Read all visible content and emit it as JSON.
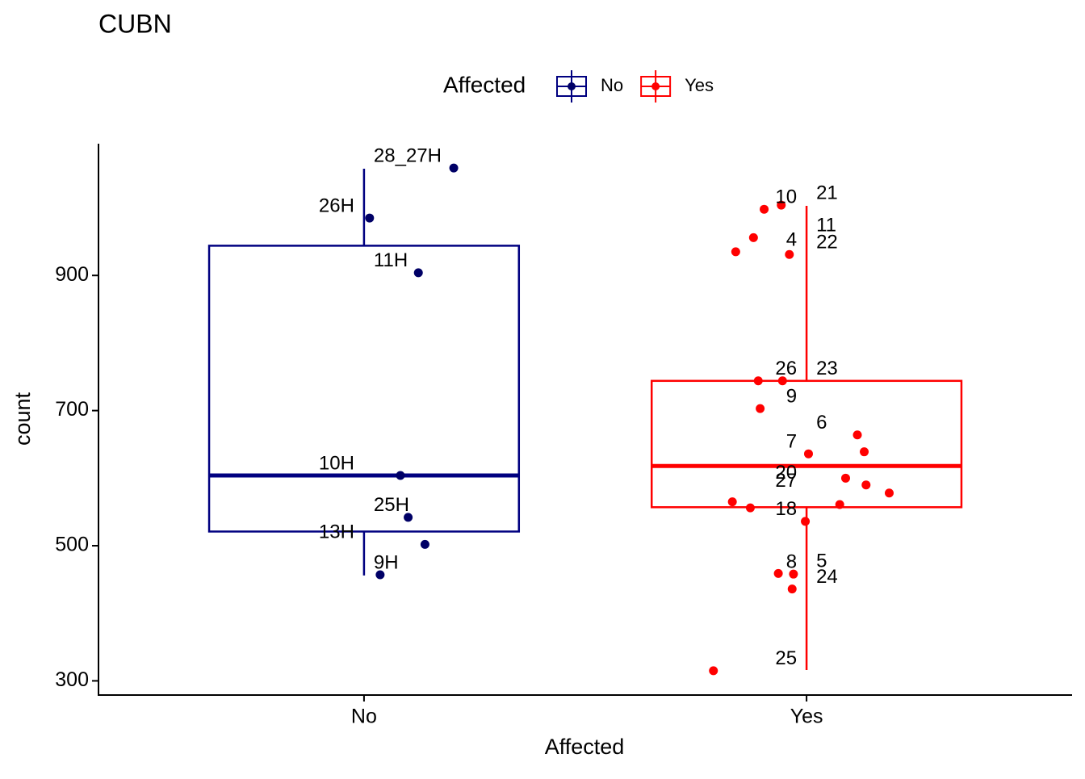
{
  "chart_data": {
    "type": "box",
    "title": "CUBN",
    "xlabel": "Affected",
    "ylabel": "count",
    "legend_title": "Affected",
    "legend_position": "top",
    "categories": [
      "No",
      "Yes"
    ],
    "ylim": [
      279,
      1095
    ],
    "yticks": [
      300,
      500,
      700,
      900
    ],
    "series": [
      {
        "name": "No",
        "color": "#000080",
        "whisker_low": 456,
        "q1": 521,
        "median": 604,
        "q3": 944,
        "whisker_high": 1058,
        "values": [
          1059,
          985,
          904,
          604,
          542,
          502,
          457
        ],
        "labels": [
          "28_27H",
          "26H",
          "11H",
          "10H",
          "25H",
          "13H",
          "9H"
        ]
      },
      {
        "name": "Yes",
        "color": "#ff0000",
        "whisker_low": 316,
        "q1": 557,
        "median": 618,
        "q3": 744,
        "whisker_high": 1003,
        "values": [
          1004,
          998,
          956,
          935,
          931,
          744,
          744,
          703,
          664,
          636,
          639,
          590,
          600,
          578,
          561,
          556,
          565,
          536,
          459,
          458,
          436,
          315
        ],
        "labels": [
          "21",
          "10",
          "11",
          "4",
          "22",
          "26",
          "23",
          "9",
          "6",
          "7",
          null,
          "20",
          null,
          "27",
          null,
          null,
          null,
          "18",
          "5",
          "8",
          "24",
          "25"
        ]
      }
    ]
  }
}
